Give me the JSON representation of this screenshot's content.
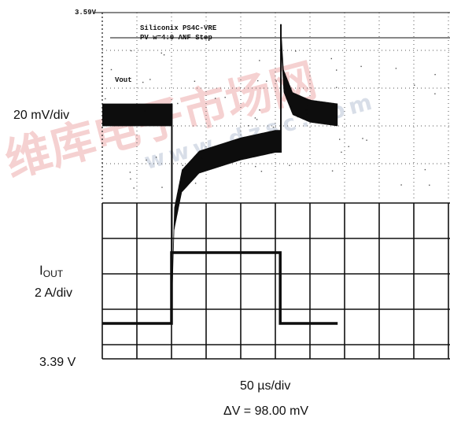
{
  "colors": {
    "trace": "#0d0d0d",
    "grid": "#111111",
    "dotted_grid": "#555555",
    "watermark_red": "#f4c9c9",
    "watermark_blue": "#d4dbe6"
  },
  "watermark": {
    "cn_text": "维库电子市场网",
    "url_text": "www.dzsc.com"
  },
  "scope_header": {
    "top_level": "3.59V",
    "line1": "Siliconix PS4C-VRE",
    "line2": "PV w=4:0 ANF Step",
    "vout_tag": "Vout"
  },
  "labels": {
    "vout_scale": "20 mV/div",
    "iout_main": "I",
    "iout_sub": "OUT",
    "iout_scale": "2 A/div",
    "ref_level": "3.39 V",
    "time_scale": "50 µs/div",
    "delta_v": "ΔV = 98.00 mV"
  },
  "chart_data": [
    {
      "type": "line",
      "name": "Vout",
      "scale": "20 mV/div",
      "time_scale": "50 µs/div",
      "x_unit": "µs",
      "y_unit": "mV (relative)",
      "points": [
        [
          0,
          0
        ],
        [
          100,
          0
        ],
        [
          100.5,
          -98
        ],
        [
          104,
          -55
        ],
        [
          115,
          -35
        ],
        [
          140,
          -25
        ],
        [
          200,
          -18
        ],
        [
          250,
          -14
        ],
        [
          257,
          -14
        ],
        [
          258,
          42
        ],
        [
          262,
          18
        ],
        [
          275,
          6
        ],
        [
          300,
          2
        ],
        [
          340,
          0
        ]
      ],
      "ripple_mV": 12,
      "delta_v_mV": 98.0
    },
    {
      "type": "line",
      "name": "IOUT",
      "scale": "2 A/div",
      "time_scale": "50 µs/div",
      "x_unit": "µs",
      "y_unit": "A",
      "points": [
        [
          0,
          0
        ],
        [
          100,
          0
        ],
        [
          100,
          4
        ],
        [
          257,
          4
        ],
        [
          257,
          0
        ],
        [
          340,
          0
        ]
      ]
    }
  ]
}
